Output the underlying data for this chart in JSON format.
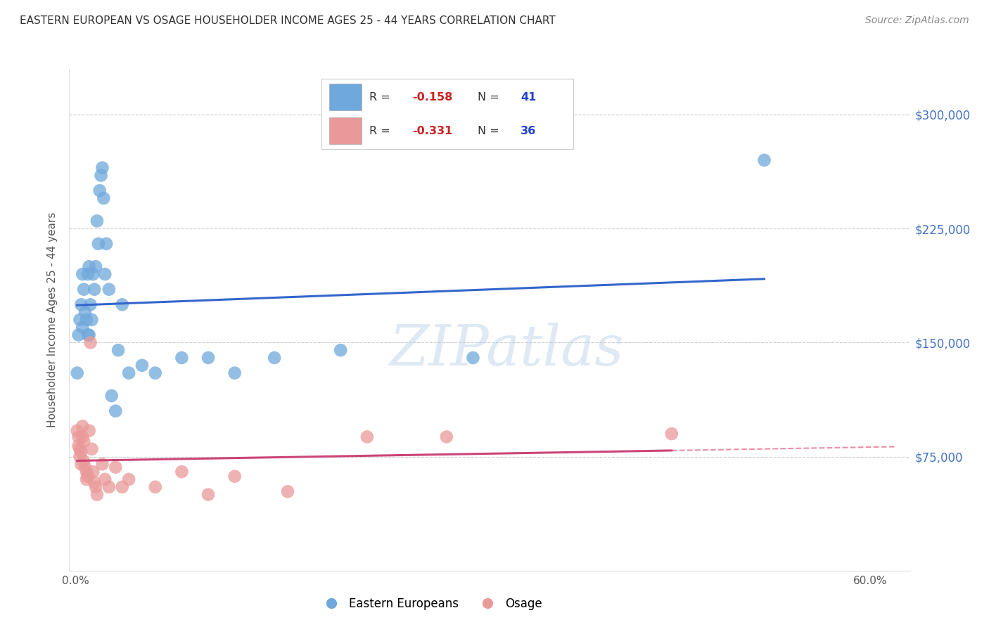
{
  "title": "EASTERN EUROPEAN VS OSAGE HOUSEHOLDER INCOME AGES 25 - 44 YEARS CORRELATION CHART",
  "source": "Source: ZipAtlas.com",
  "ylabel": "Householder Income Ages 25 - 44 years",
  "ytick_labels": [
    "$75,000",
    "$150,000",
    "$225,000",
    "$300,000"
  ],
  "ytick_vals": [
    75000,
    150000,
    225000,
    300000
  ],
  "ylim": [
    0,
    330000
  ],
  "xlim": [
    -0.005,
    0.63
  ],
  "blue_R": -0.158,
  "blue_N": 41,
  "pink_R": -0.331,
  "pink_N": 36,
  "blue_color": "#6fa8dc",
  "pink_color": "#ea9999",
  "blue_line_color": "#3366cc",
  "pink_line_color": "#cc4477",
  "pink_line_color_dashed": "#e06080",
  "watermark": "ZIPatlas",
  "blue_scatter_x": [
    0.001,
    0.002,
    0.003,
    0.004,
    0.005,
    0.005,
    0.006,
    0.007,
    0.008,
    0.009,
    0.009,
    0.01,
    0.01,
    0.011,
    0.012,
    0.013,
    0.014,
    0.015,
    0.016,
    0.017,
    0.018,
    0.019,
    0.02,
    0.021,
    0.022,
    0.023,
    0.025,
    0.027,
    0.03,
    0.032,
    0.035,
    0.04,
    0.05,
    0.06,
    0.08,
    0.1,
    0.12,
    0.15,
    0.2,
    0.3,
    0.52
  ],
  "blue_scatter_y": [
    130000,
    155000,
    165000,
    175000,
    160000,
    195000,
    185000,
    170000,
    165000,
    155000,
    195000,
    200000,
    155000,
    175000,
    165000,
    195000,
    185000,
    200000,
    230000,
    215000,
    250000,
    260000,
    265000,
    245000,
    195000,
    215000,
    185000,
    115000,
    105000,
    145000,
    175000,
    130000,
    135000,
    130000,
    140000,
    140000,
    130000,
    140000,
    145000,
    140000,
    270000
  ],
  "pink_scatter_x": [
    0.001,
    0.002,
    0.002,
    0.003,
    0.003,
    0.004,
    0.004,
    0.005,
    0.005,
    0.006,
    0.006,
    0.007,
    0.008,
    0.008,
    0.009,
    0.01,
    0.011,
    0.012,
    0.013,
    0.014,
    0.015,
    0.016,
    0.02,
    0.022,
    0.025,
    0.03,
    0.035,
    0.04,
    0.06,
    0.08,
    0.1,
    0.12,
    0.16,
    0.22,
    0.28,
    0.45
  ],
  "pink_scatter_y": [
    92000,
    88000,
    82000,
    80000,
    75000,
    78000,
    70000,
    88000,
    95000,
    85000,
    72000,
    68000,
    65000,
    60000,
    62000,
    92000,
    150000,
    80000,
    65000,
    58000,
    55000,
    50000,
    70000,
    60000,
    55000,
    68000,
    55000,
    60000,
    55000,
    65000,
    50000,
    62000,
    52000,
    88000,
    88000,
    90000
  ],
  "xtick_positions": [
    0.0,
    0.6
  ],
  "xtick_labels": [
    "0.0%",
    "60.0%"
  ]
}
